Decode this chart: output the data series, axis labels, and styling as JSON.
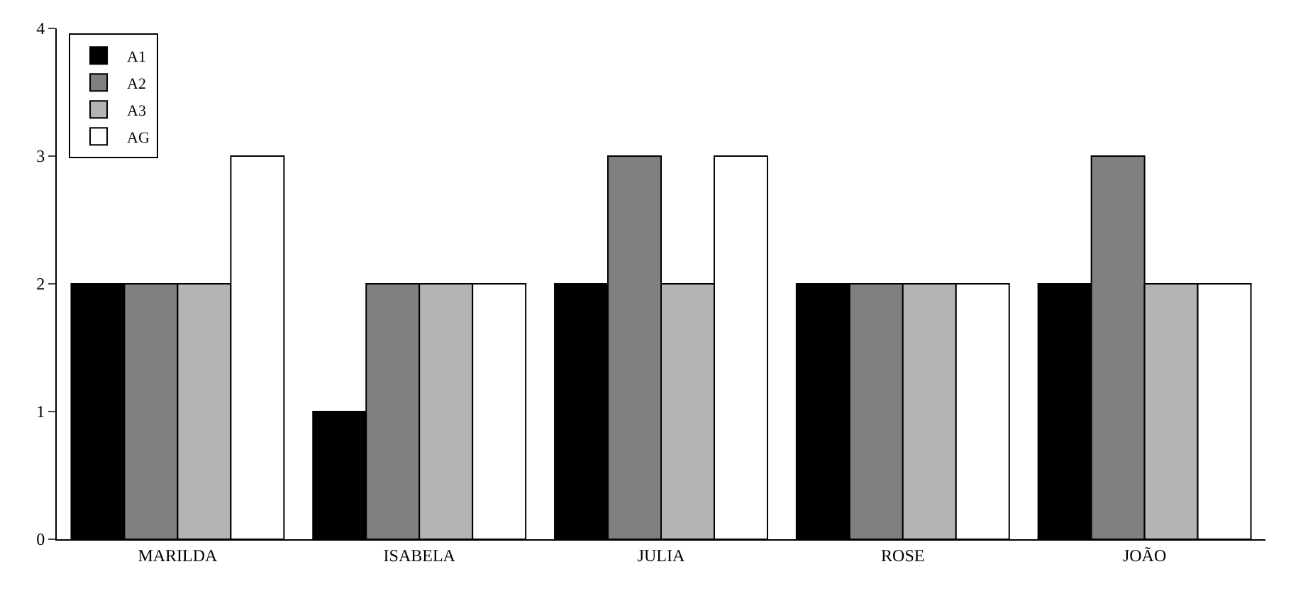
{
  "chart_data": {
    "type": "bar",
    "categories": [
      "MARILDA",
      "ISABELA",
      "JULIA",
      "ROSE",
      "JOÃO"
    ],
    "series": [
      {
        "name": "A1",
        "color": "#000000",
        "values": [
          2,
          1,
          2,
          2,
          2
        ]
      },
      {
        "name": "A2",
        "color": "#808080",
        "values": [
          2,
          2,
          3,
          2,
          3
        ]
      },
      {
        "name": "A3",
        "color": "#b4b4b4",
        "values": [
          2,
          2,
          2,
          2,
          2
        ]
      },
      {
        "name": "AG",
        "color": "#ffffff",
        "values": [
          3,
          2,
          3,
          2,
          2
        ]
      }
    ],
    "ylim": [
      0,
      4
    ],
    "yticks": [
      0,
      1,
      2,
      3,
      4
    ],
    "legend": "top left"
  }
}
